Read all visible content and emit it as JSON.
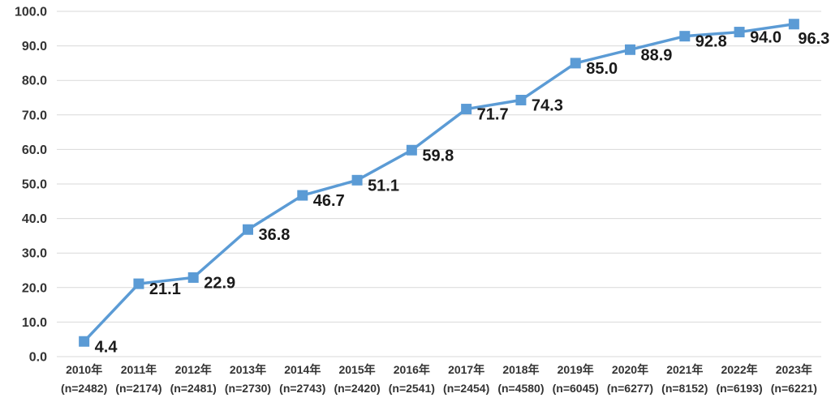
{
  "chart_data": {
    "type": "line",
    "title": "",
    "categories": [
      "2010年",
      "2011年",
      "2012年",
      "2013年",
      "2014年",
      "2015年",
      "2016年",
      "2017年",
      "2018年",
      "2019年",
      "2020年",
      "2021年",
      "2022年",
      "2023年"
    ],
    "category_sublabels": [
      "(n=2482)",
      "(n=2174)",
      "(n=2481)",
      "(n=2730)",
      "(n=2743)",
      "(n=2420)",
      "(n=2541)",
      "(n=2454)",
      "(n=4580)",
      "(n=6045)",
      "(n=6277)",
      "(n=8152)",
      "(n=6193)",
      "(n=6221)"
    ],
    "series": [
      {
        "name": "value",
        "values": [
          4.4,
          21.1,
          22.9,
          36.8,
          46.7,
          51.1,
          59.8,
          71.7,
          74.3,
          85.0,
          88.9,
          92.8,
          94.0,
          96.3
        ]
      }
    ],
    "data_labels": [
      "4.4",
      "21.1",
      "22.9",
      "36.8",
      "46.7",
      "51.1",
      "59.8",
      "71.7",
      "74.3",
      "85.0",
      "88.9",
      "92.8",
      "94.0",
      "96.3"
    ],
    "xlabel": "",
    "ylabel": "",
    "ylim": [
      0,
      100
    ],
    "ytick_step": 10,
    "ytick_labels": [
      "0.0",
      "10.0",
      "20.0",
      "30.0",
      "40.0",
      "50.0",
      "60.0",
      "70.0",
      "80.0",
      "90.0",
      "100.0"
    ],
    "grid": true,
    "legend": "none",
    "marker_shape": "square",
    "colors": {
      "line": "#5B9BD5",
      "marker": "#5B9BD5",
      "gridline": "#D9D9D9",
      "data_label": "#1a1a1a",
      "axis_label": "#333333",
      "background": "#FFFFFF"
    }
  }
}
